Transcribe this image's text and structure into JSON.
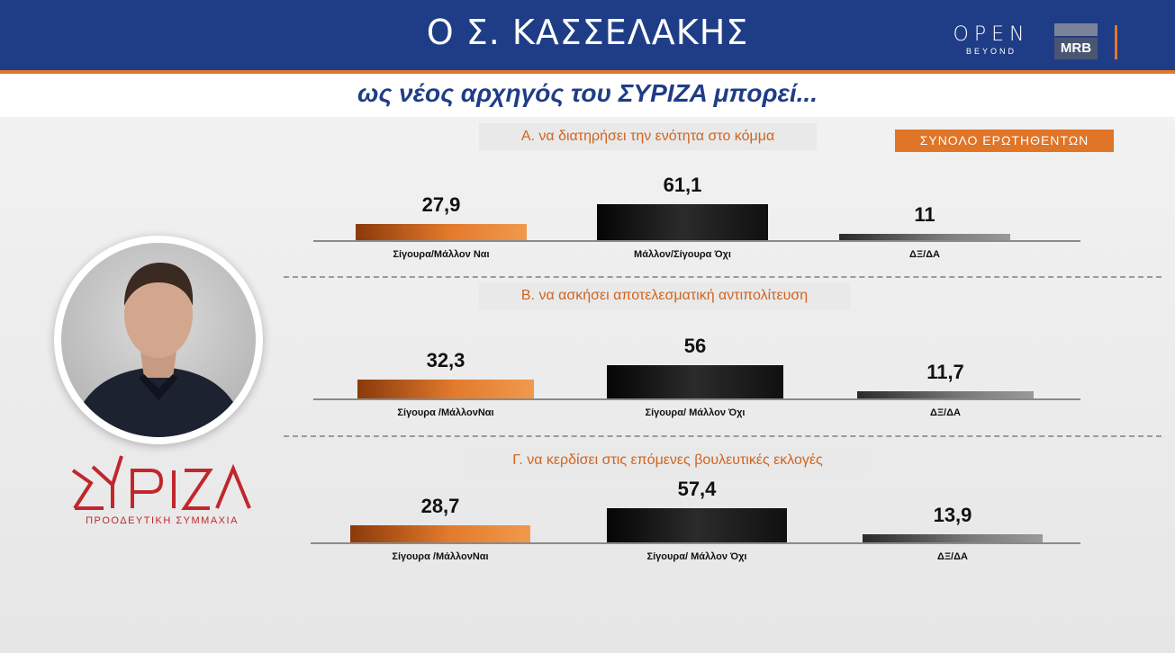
{
  "header": {
    "title": "Ο Σ. ΚΑΣΣΕΛΑΚΗΣ",
    "subtitle": "ως νέος αρχηγός του ΣΥΡΙΖΑ μπορεί...",
    "brand_open": "OPEN",
    "brand_open_sub": "BEYOND",
    "brand_mrb": "MRB"
  },
  "party": {
    "tagline": "ΠΡΟΟΔΕΥΤΙΚΗ ΣΥΜΜΑΧΙΑ"
  },
  "badge": "ΣΥΝΟΛΟ ΕΡΩΤΗΘΕΝΤΩΝ",
  "colors": {
    "header_blue": "#1f3d86",
    "accent_orange": "#e07427",
    "party_red": "#c0272d"
  },
  "chart_data": [
    {
      "type": "bar",
      "title": "Α. να διατηρήσει την ενότητα στο κόμμα",
      "categories": [
        "Σίγουρα/Μάλλον Ναι",
        "Μάλλον/Σίγουρα Όχι",
        "ΔΞ/ΔΑ"
      ],
      "values": [
        27.9,
        61.1,
        11
      ],
      "value_labels": [
        "27,9",
        "61,1",
        "11"
      ]
    },
    {
      "type": "bar",
      "title": "Β. να ασκήσει αποτελεσματική αντιπολίτευση",
      "categories": [
        "Σίγουρα /ΜάλλονΝαι",
        "Σίγουρα/ Μάλλον Όχι",
        "ΔΞ/ΔΑ"
      ],
      "values": [
        32.3,
        56,
        11.7
      ],
      "value_labels": [
        "32,3",
        "56",
        "11,7"
      ]
    },
    {
      "type": "bar",
      "title": "Γ. να κερδίσει στις επόμενες βουλευτικές εκλογές",
      "categories": [
        "Σίγουρα /ΜάλλονΝαι",
        "Σίγουρα/ Μάλλον Όχι",
        "ΔΞ/ΔΑ"
      ],
      "values": [
        28.7,
        57.4,
        13.9
      ],
      "value_labels": [
        "28,7",
        "57,4",
        "13,9"
      ]
    }
  ]
}
